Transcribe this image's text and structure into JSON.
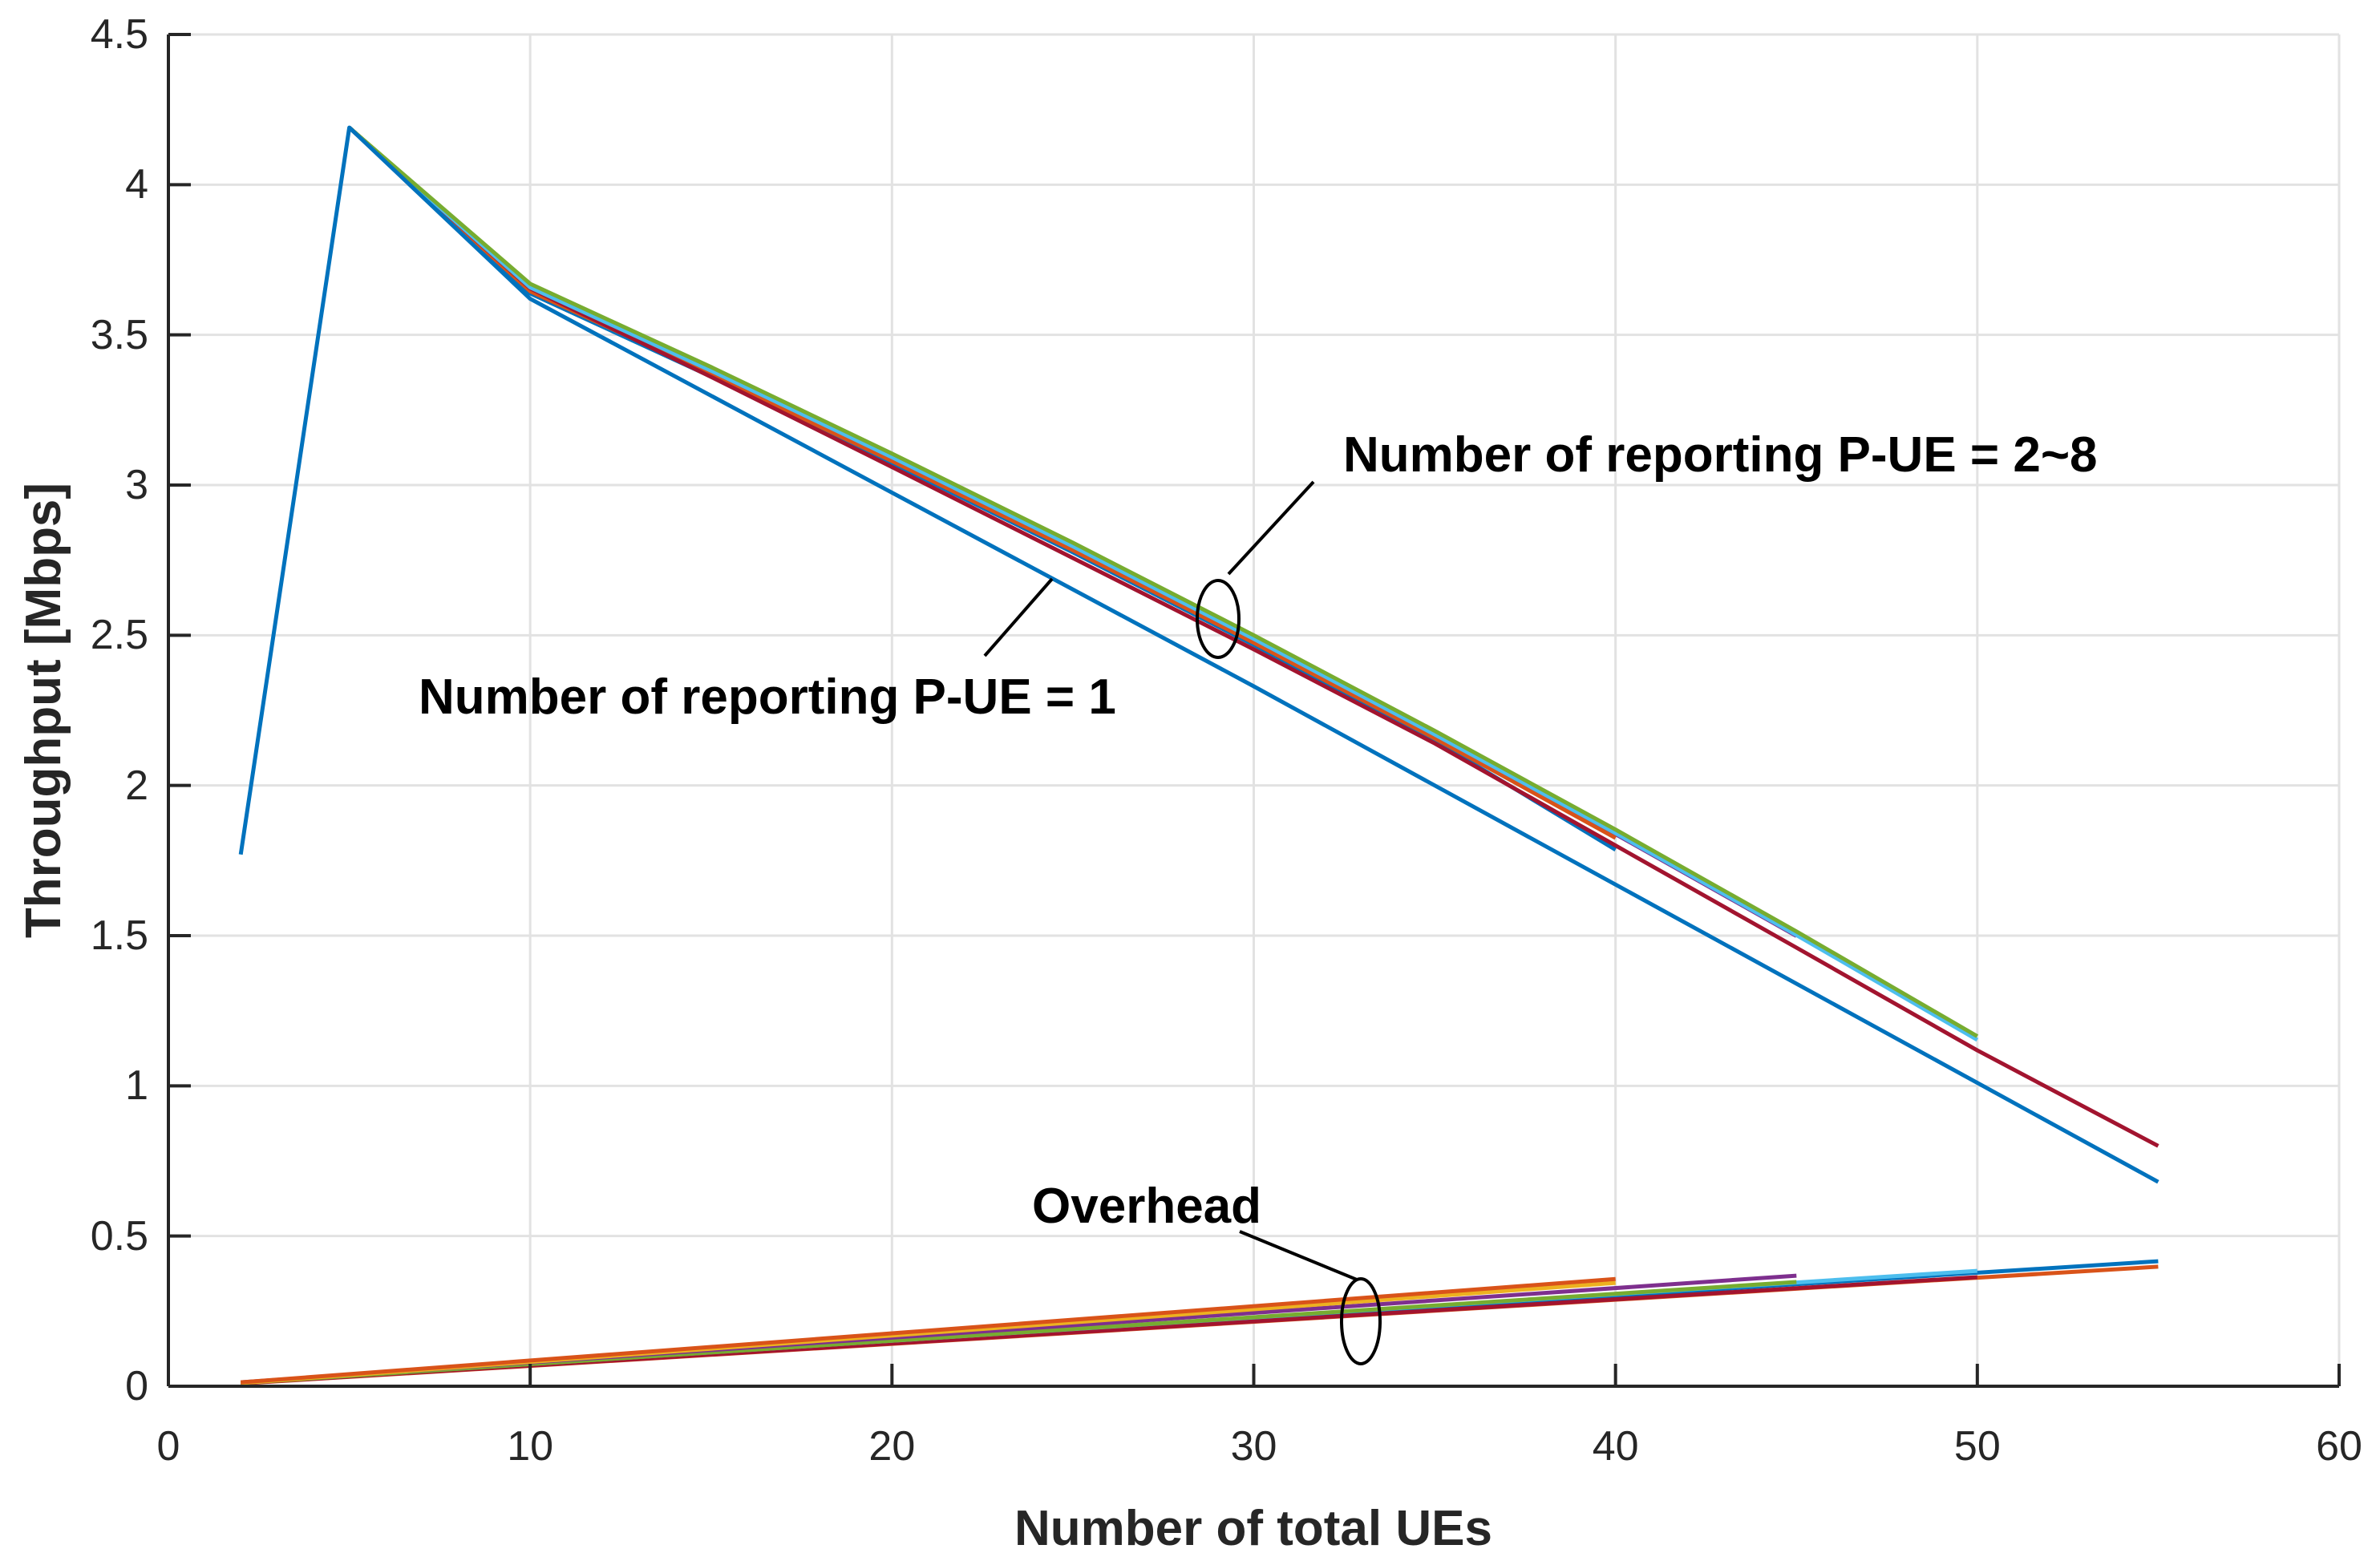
{
  "figure": {
    "background": "#ffffff",
    "axis_color": "#262626",
    "grid_color": "#e2e2e2",
    "annotation_color": "#000000",
    "series_palette": {
      "blue": "#0072BD",
      "orange": "#D95319",
      "yellow": "#EDB120",
      "purple": "#7E2F8E",
      "green": "#77AC30",
      "cyan": "#4DBEEE",
      "maroon": "#A2142F"
    }
  },
  "chart_data": {
    "type": "line",
    "title": "",
    "xlabel": "Number of total UEs",
    "ylabel": "Throughput [Mbps]",
    "xlim": [
      0,
      60
    ],
    "ylim": [
      0,
      4.5
    ],
    "grid": true,
    "legend": "none",
    "x_ticks": [
      "0",
      "10",
      "20",
      "30",
      "40",
      "50",
      "60"
    ],
    "x_tick_values": [
      0,
      10,
      20,
      30,
      40,
      50,
      60
    ],
    "y_ticks": [
      "0",
      "0.5",
      "1",
      "1.5",
      "2",
      "2.5",
      "3",
      "3.5",
      "4",
      "4.5"
    ],
    "y_tick_values": [
      0,
      0.5,
      1,
      1.5,
      2,
      2.5,
      3,
      3.5,
      4,
      4.5
    ],
    "series": [
      {
        "name": "throughput-bundle-blue-end40",
        "group": "throughput",
        "color": "#0072BD",
        "points": [
          [
            5,
            4.19
          ],
          [
            10,
            3.638
          ],
          [
            15,
            3.361
          ],
          [
            20,
            3.073
          ],
          [
            25,
            2.776
          ],
          [
            30,
            2.468
          ],
          [
            35,
            2.15
          ],
          [
            40,
            1.786
          ]
        ]
      },
      {
        "name": "throughput-bundle-purple-end45",
        "group": "throughput",
        "color": "#7E2F8E",
        "points": [
          [
            5,
            4.19
          ],
          [
            10,
            3.655
          ],
          [
            15,
            3.378
          ],
          [
            20,
            3.09
          ],
          [
            25,
            2.793
          ],
          [
            30,
            2.485
          ],
          [
            35,
            2.167
          ],
          [
            40,
            1.838
          ],
          [
            45,
            1.499
          ]
        ]
      },
      {
        "name": "throughput-bundle-yellow-end40",
        "group": "throughput",
        "color": "#EDB120",
        "points": [
          [
            5,
            4.19
          ],
          [
            10,
            3.664
          ],
          [
            15,
            3.387
          ],
          [
            20,
            3.099
          ],
          [
            25,
            2.802
          ],
          [
            30,
            2.494
          ],
          [
            35,
            2.176
          ],
          [
            40,
            1.847
          ]
        ]
      },
      {
        "name": "throughput-bundle-orange-end40",
        "group": "throughput",
        "color": "#D95319",
        "points": [
          [
            5,
            4.19
          ],
          [
            10,
            3.645
          ],
          [
            15,
            3.368
          ],
          [
            20,
            3.08
          ],
          [
            25,
            2.783
          ],
          [
            30,
            2.475
          ],
          [
            35,
            2.157
          ],
          [
            40,
            1.825
          ]
        ]
      },
      {
        "name": "throughput-bundle-maroon-end55",
        "group": "throughput",
        "color": "#A2142F",
        "points": [
          [
            5,
            4.19
          ],
          [
            10,
            3.655
          ],
          [
            15,
            3.36
          ],
          [
            20,
            3.06
          ],
          [
            25,
            2.757
          ],
          [
            30,
            2.453
          ],
          [
            35,
            2.14
          ],
          [
            40,
            1.8
          ],
          [
            45,
            1.46
          ],
          [
            50,
            1.118
          ],
          [
            55,
            0.8
          ]
        ]
      },
      {
        "name": "throughput-bundle-cyan-end50",
        "group": "throughput",
        "color": "#4DBEEE",
        "points": [
          [
            5,
            4.19
          ],
          [
            10,
            3.658
          ],
          [
            15,
            3.381
          ],
          [
            20,
            3.093
          ],
          [
            25,
            2.796
          ],
          [
            30,
            2.488
          ],
          [
            35,
            2.17
          ],
          [
            40,
            1.841
          ],
          [
            45,
            1.502
          ],
          [
            50,
            1.153
          ]
        ]
      },
      {
        "name": "throughput-bundle-green-end50",
        "group": "throughput",
        "color": "#77AC30",
        "points": [
          [
            5,
            4.19
          ],
          [
            10,
            3.67
          ],
          [
            15,
            3.393
          ],
          [
            20,
            3.105
          ],
          [
            25,
            2.808
          ],
          [
            30,
            2.5
          ],
          [
            35,
            2.182
          ],
          [
            40,
            1.853
          ],
          [
            45,
            1.514
          ],
          [
            50,
            1.165
          ]
        ]
      },
      {
        "name": "overhead-orange-low-end55",
        "group": "overhead",
        "color": "#D95319",
        "points": [
          [
            2,
            0.009
          ],
          [
            55,
            0.398
          ]
        ]
      },
      {
        "name": "overhead-blue-end55",
        "group": "overhead",
        "color": "#0072BD",
        "points": [
          [
            2,
            0.011
          ],
          [
            55,
            0.416
          ]
        ]
      },
      {
        "name": "overhead-maroon-end50",
        "group": "overhead",
        "color": "#A2142F",
        "points": [
          [
            2,
            0.01
          ],
          [
            50,
            0.363
          ]
        ]
      },
      {
        "name": "overhead-cyan-end50",
        "group": "overhead",
        "color": "#4DBEEE",
        "points": [
          [
            2,
            0.012
          ],
          [
            50,
            0.384
          ]
        ]
      },
      {
        "name": "overhead-green-end45",
        "group": "overhead",
        "color": "#77AC30",
        "points": [
          [
            2,
            0.011
          ],
          [
            45,
            0.347
          ]
        ]
      },
      {
        "name": "overhead-purple-end45",
        "group": "overhead",
        "color": "#7E2F8E",
        "points": [
          [
            2,
            0.013
          ],
          [
            45,
            0.368
          ]
        ]
      },
      {
        "name": "overhead-yellow-end40",
        "group": "overhead",
        "color": "#EDB120",
        "points": [
          [
            2,
            0.011
          ],
          [
            40,
            0.344
          ]
        ]
      },
      {
        "name": "overhead-orange-top-end40",
        "group": "overhead",
        "color": "#D95319",
        "points": [
          [
            2,
            0.013
          ],
          [
            40,
            0.357
          ]
        ]
      },
      {
        "name": "throughput-pue-1-blue",
        "group": "throughput",
        "color": "#0072BD",
        "points": [
          [
            2,
            1.77
          ],
          [
            5,
            4.19
          ],
          [
            10,
            3.62
          ],
          [
            20,
            2.975
          ],
          [
            30,
            2.33
          ],
          [
            40,
            1.67
          ],
          [
            50,
            1.01
          ],
          [
            55,
            0.68
          ]
        ]
      }
    ],
    "annotations": [
      {
        "id": "pue-2-8",
        "text": "Number of reporting P-UE = 2~8",
        "left": 1675,
        "center_y": 568
      },
      {
        "id": "pue-1",
        "text": "Number of reporting P-UE = 1",
        "left": 522,
        "center_y": 870
      },
      {
        "id": "overhead",
        "text": "Overhead",
        "left": 1287,
        "center_y": 1505
      }
    ],
    "callout_lines": [
      {
        "id": "callout-pue-2-8",
        "x1": 1638,
        "y1": 601,
        "x2": 1532,
        "y2": 716
      },
      {
        "id": "callout-pue-1",
        "x1": 1228,
        "y1": 818,
        "x2": 1312,
        "y2": 722
      },
      {
        "id": "callout-overhead",
        "x1": 1546,
        "y1": 1536,
        "x2": 1692,
        "y2": 1596
      }
    ],
    "callout_ellipses": [
      {
        "id": "ellipse-bundle",
        "cx": 1519,
        "cy": 772,
        "rx": 26,
        "ry": 48
      },
      {
        "id": "ellipse-overhead",
        "cx": 1697,
        "cy": 1648,
        "rx": 24,
        "ry": 53
      }
    ]
  }
}
